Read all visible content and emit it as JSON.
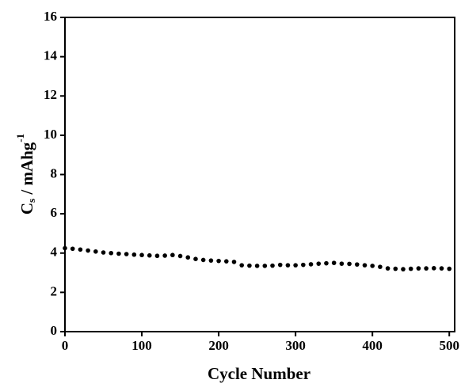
{
  "chart_data": {
    "type": "scatter",
    "xlabel": "Cycle Number",
    "ylabel": {
      "base": "C",
      "sub": "s",
      "rest": " / mAhg",
      "sup": "-1"
    },
    "x": [
      0,
      10,
      20,
      30,
      40,
      50,
      60,
      70,
      80,
      90,
      100,
      110,
      120,
      130,
      140,
      150,
      160,
      170,
      180,
      190,
      200,
      210,
      220,
      230,
      240,
      250,
      260,
      270,
      280,
      290,
      300,
      310,
      320,
      330,
      340,
      350,
      360,
      370,
      380,
      390,
      400,
      410,
      420,
      430,
      440,
      450,
      460,
      470,
      480,
      490,
      500
    ],
    "values": [
      4.25,
      4.22,
      4.18,
      4.13,
      4.08,
      4.03,
      4.0,
      3.97,
      3.95,
      3.92,
      3.9,
      3.88,
      3.86,
      3.87,
      3.9,
      3.85,
      3.78,
      3.7,
      3.65,
      3.62,
      3.6,
      3.58,
      3.55,
      3.38,
      3.36,
      3.35,
      3.35,
      3.36,
      3.4,
      3.38,
      3.38,
      3.4,
      3.43,
      3.46,
      3.48,
      3.5,
      3.46,
      3.45,
      3.42,
      3.38,
      3.35,
      3.3,
      3.22,
      3.2,
      3.18,
      3.2,
      3.22,
      3.22,
      3.23,
      3.22,
      3.2
    ],
    "color": "#000000",
    "xlim": [
      0,
      507
    ],
    "xticks": [
      0,
      100,
      200,
      300,
      400,
      500
    ],
    "ylim": [
      0,
      16
    ],
    "yticks": [
      0,
      2,
      4,
      6,
      8,
      10,
      12,
      14,
      16
    ]
  }
}
